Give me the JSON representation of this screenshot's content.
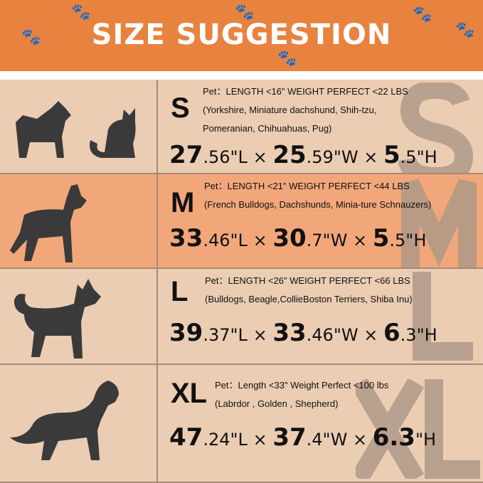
{
  "title": "SIZE SUGGESTION",
  "colors": {
    "header": "#e8823f",
    "row_light": "#ebcdb3",
    "row_highlight": "#f2a77a",
    "watermark": "#b09a88"
  },
  "sizes": [
    {
      "size": "S",
      "line1": "Pet：LENGTH <16\"  WEIGHT PERFECT <22 LBS",
      "line2": "(Yorkshire, Miniature dachshund, Shih-tzu,",
      "line3": "Pomeranian, Chihuahuas, Pug)",
      "dims": [
        {
          "int": "27",
          "dec": ".56",
          "unit": "\"L"
        },
        {
          "int": "25",
          "dec": ".59",
          "unit": "\"W"
        },
        {
          "int": "5",
          "dec": ".5",
          "unit": "\"H"
        }
      ],
      "animals": "yorkie-and-cat-icon"
    },
    {
      "size": "M",
      "line1": "Pet：LENGTH <21\"  WEIGHT PERFECT <44 LBS",
      "line2": "(French Bulldogs, Dachshunds, Minia-ture Schnauzers)",
      "line3": "",
      "dims": [
        {
          "int": "33",
          "dec": ".46",
          "unit": "\"L"
        },
        {
          "int": "30",
          "dec": ".7",
          "unit": "\"W"
        },
        {
          "int": "5",
          "dec": ".5",
          "unit": "\"H"
        }
      ],
      "animals": "french-bulldog-icon"
    },
    {
      "size": "L",
      "line1": "Pet：LENGTH <26\" WEIGHT PERFECT <66 LBS",
      "line2": "(Bulldogs, Beagle,CollieBoston Terriers, Shiba Inu)",
      "line3": "",
      "dims": [
        {
          "int": "39",
          "dec": ".37",
          "unit": "\"L"
        },
        {
          "int": "33",
          "dec": ".46",
          "unit": "\"W"
        },
        {
          "int": "6",
          "dec": ".3",
          "unit": "\"H"
        }
      ],
      "animals": "shiba-icon"
    },
    {
      "size": "XL",
      "line1": "Pet：Length <33\"  Weight Perfect <100 lbs",
      "line2": "(Labrdor , Golden , Shepherd)",
      "line3": "",
      "dims": [
        {
          "int": "47",
          "dec": ".24",
          "unit": "\"L"
        },
        {
          "int": "37",
          "dec": ".4",
          "unit": "\"W"
        },
        {
          "int": "6.3",
          "dec": "",
          "unit": "\"H"
        }
      ],
      "animals": "golden-retriever-icon"
    }
  ],
  "times": "×"
}
